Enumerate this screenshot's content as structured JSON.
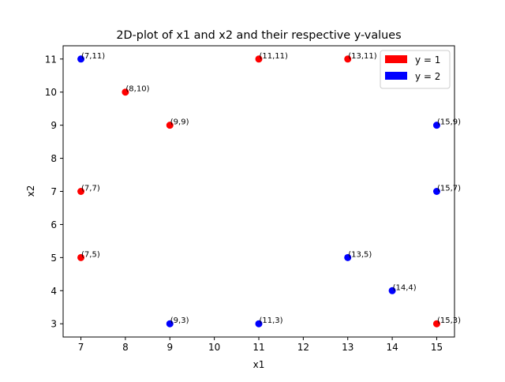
{
  "chart_data": {
    "type": "scatter",
    "title": "2D-plot of x1 and x2 and their respective y-values",
    "xlabel": "x1",
    "ylabel": "x2",
    "xlim": [
      6.6,
      15.4
    ],
    "ylim": [
      2.6,
      11.4
    ],
    "xticks": [
      7,
      8,
      9,
      10,
      11,
      12,
      13,
      14,
      15
    ],
    "yticks": [
      3,
      4,
      5,
      6,
      7,
      8,
      9,
      10,
      11
    ],
    "grid": false,
    "legend_position": "top-right",
    "series": [
      {
        "name": "y = 1",
        "color": "#ff0000",
        "points": [
          {
            "x": 8,
            "y": 10,
            "label": "(8,10)"
          },
          {
            "x": 9,
            "y": 9,
            "label": "(9,9)"
          },
          {
            "x": 7,
            "y": 7,
            "label": "(7,7)"
          },
          {
            "x": 7,
            "y": 5,
            "label": "(7,5)"
          },
          {
            "x": 11,
            "y": 11,
            "label": "(11,11)"
          },
          {
            "x": 13,
            "y": 11,
            "label": "(13,11)"
          },
          {
            "x": 15,
            "y": 3,
            "label": "(15,3)"
          }
        ]
      },
      {
        "name": "y = 2",
        "color": "#0000ff",
        "points": [
          {
            "x": 7,
            "y": 11,
            "label": "(7,11)"
          },
          {
            "x": 15,
            "y": 9,
            "label": "(15,9)"
          },
          {
            "x": 15,
            "y": 7,
            "label": "(15,7)"
          },
          {
            "x": 13,
            "y": 5,
            "label": "(13,5)"
          },
          {
            "x": 14,
            "y": 4,
            "label": "(14,4)"
          },
          {
            "x": 9,
            "y": 3,
            "label": "(9,3)"
          },
          {
            "x": 11,
            "y": 3,
            "label": "(11,3)"
          }
        ]
      }
    ]
  }
}
